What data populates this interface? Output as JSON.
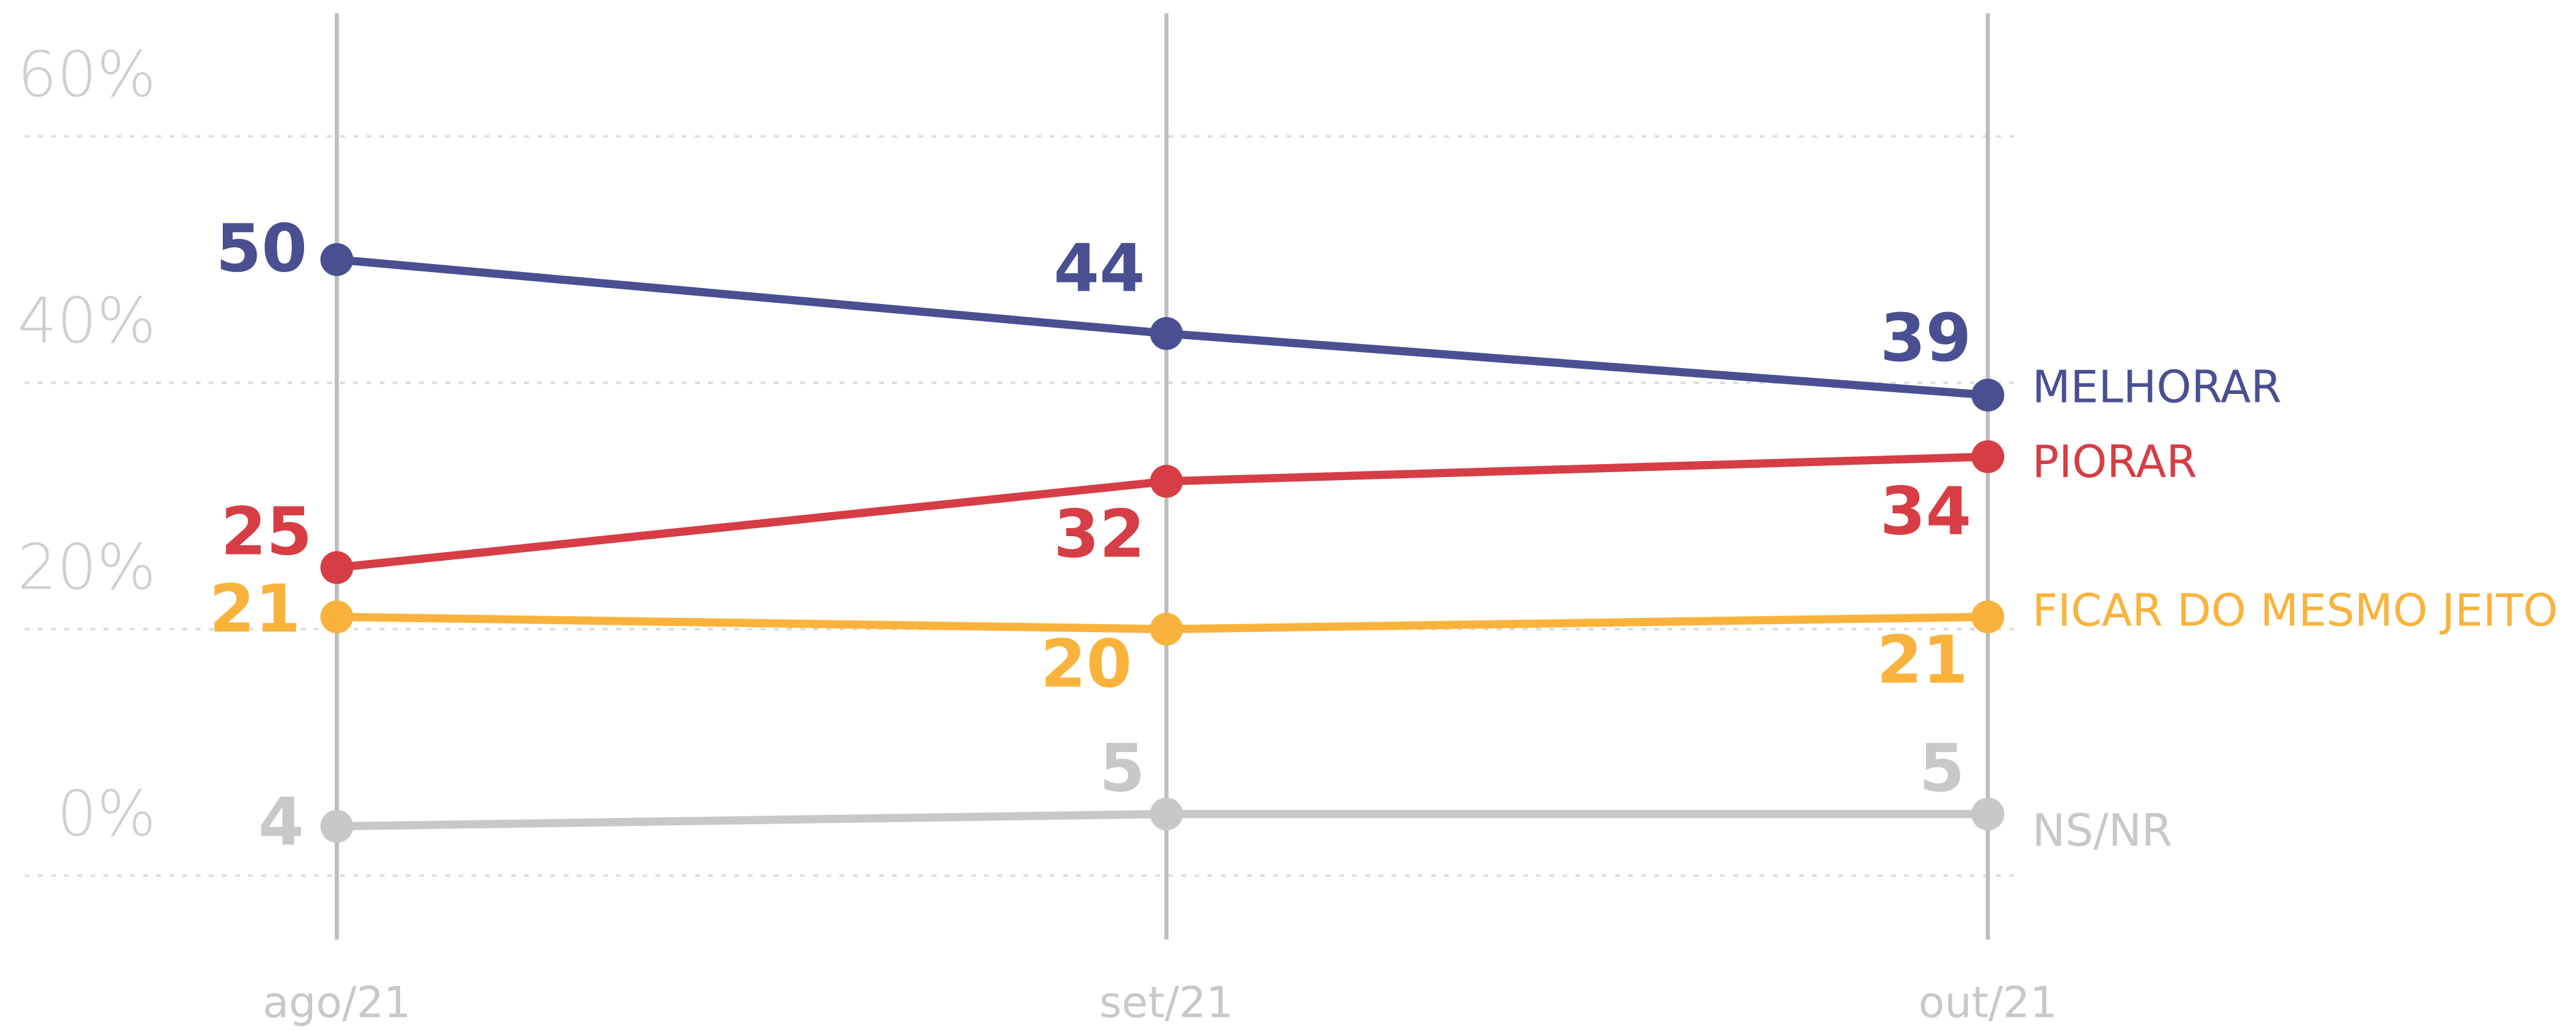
{
  "chart_data": {
    "type": "line",
    "categories": [
      "ago/21",
      "set/21",
      "out/21"
    ],
    "ylim": [
      -5.2,
      70
    ],
    "yticks": [
      {
        "value": 0,
        "label": "0%"
      },
      {
        "value": 20,
        "label": "20%"
      },
      {
        "value": 40,
        "label": "40%"
      },
      {
        "value": 60,
        "label": "60%"
      }
    ],
    "grid": true,
    "series": [
      {
        "name": "MELHORAR",
        "color": "#4a4f91",
        "values": [
          50,
          44,
          39
        ]
      },
      {
        "name": "PIORAR",
        "color": "#d63d45",
        "values": [
          25,
          32,
          34
        ]
      },
      {
        "name": "FICAR DO MESMO JEITO",
        "color": "#f9b33c",
        "values": [
          21,
          20,
          21
        ]
      },
      {
        "name": "NS/NR",
        "color": "#c8c8c8",
        "values": [
          4,
          5,
          5
        ]
      }
    ]
  }
}
